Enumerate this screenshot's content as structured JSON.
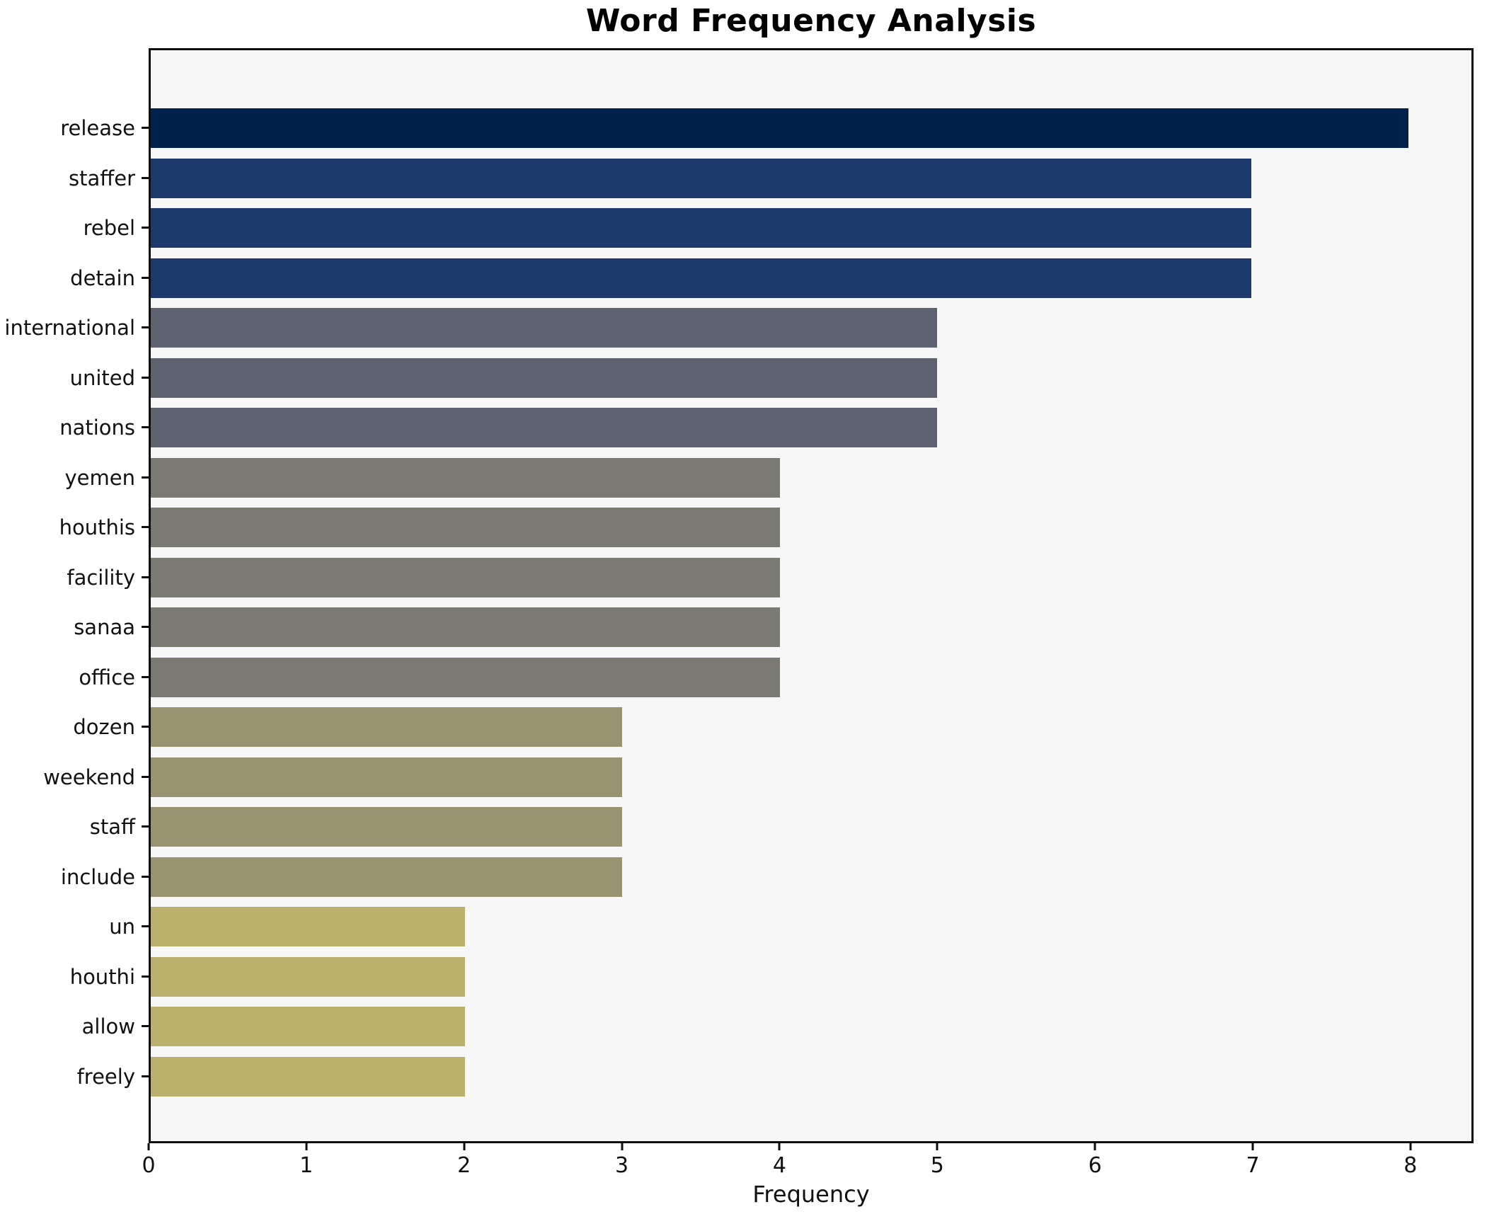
{
  "title": "Word Frequency Analysis",
  "chart_data": {
    "type": "bar",
    "orientation": "horizontal",
    "title": "Word Frequency Analysis",
    "xlabel": "Frequency",
    "ylabel": "",
    "categories": [
      "release",
      "staffer",
      "rebel",
      "detain",
      "international",
      "united",
      "nations",
      "yemen",
      "houthis",
      "facility",
      "sanaa",
      "office",
      "dozen",
      "weekend",
      "staff",
      "include",
      "un",
      "houthi",
      "allow",
      "freely"
    ],
    "values": [
      8,
      7,
      7,
      7,
      5,
      5,
      5,
      4,
      4,
      4,
      4,
      4,
      3,
      3,
      3,
      3,
      2,
      2,
      2,
      2
    ],
    "bar_colors": [
      "#02224e",
      "#1e3a6d",
      "#1e3a6d",
      "#1e3a6d",
      "#5e626e",
      "#5e626e",
      "#5e626e",
      "#7b7a72",
      "#7b7a72",
      "#7b7a72",
      "#7b7a72",
      "#7b7a72",
      "#999371",
      "#999371",
      "#999371",
      "#999371",
      "#bcb06e",
      "#bcb06e",
      "#bcb06e",
      "#bcb06e"
    ],
    "xlim": [
      0,
      8.4
    ],
    "xticks": [
      0,
      1,
      2,
      3,
      4,
      5,
      6,
      7,
      8
    ],
    "grid": false,
    "legend": null,
    "plot_background": "#f7f7f8",
    "figure_background": "#ffffff",
    "spine_color": "#0e0e0e"
  }
}
